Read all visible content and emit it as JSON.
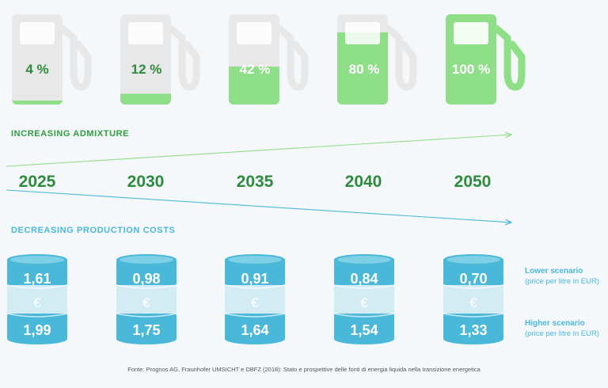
{
  "chart_data": {
    "type": "infographic",
    "admixture": {
      "title": "INCREASING ADMIXTURE",
      "years": [
        "2025",
        "2030",
        "2035",
        "2040",
        "2050"
      ],
      "percent_labels": [
        "4 %",
        "12 %",
        "42 %",
        "80 %",
        "100 %"
      ],
      "percent_values": [
        4,
        12,
        42,
        80,
        100
      ]
    },
    "costs": {
      "title": "DECREASING PRODUCTION COSTS",
      "currency_symbol": "€",
      "lower": [
        "1,61",
        "0,98",
        "0,91",
        "0,84",
        "0,70"
      ],
      "higher": [
        "1,99",
        "1,75",
        "1,64",
        "1,54",
        "1,33"
      ],
      "lower_legend": {
        "title": "Lower scenario",
        "sub": "(price per litre in EUR)"
      },
      "higher_legend": {
        "title": "Higher scenario",
        "sub": "(price per litre in EUR)"
      }
    }
  },
  "footer": "Fonte: Prognos AG, Fraunhofer UMSICHT e DBFZ (2018): Stato e prospettive delle fonti di energia liquida nella transizione energetica",
  "colors": {
    "green": "#8fde88",
    "green_text": "#2e8b3e",
    "gray": "#e8e8e8",
    "blue": "#4ab8d8",
    "blue_light": "#d3ecf3"
  }
}
